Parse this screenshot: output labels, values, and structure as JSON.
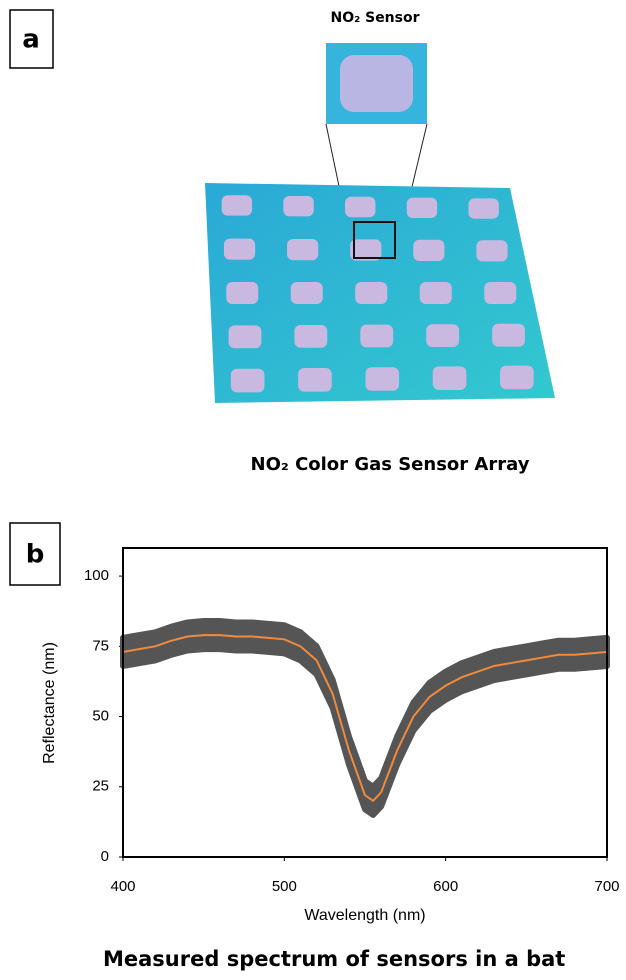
{
  "panel_a": {
    "label": "a",
    "inset_title": "NO₂ Sensor",
    "caption": "NO₂ Color Gas Sensor Array"
  },
  "panel_b": {
    "label": "b",
    "caption": "Measured spectrum of sensors in a bat"
  },
  "chart_data": {
    "type": "line",
    "x_label": "Wavelength (nm)",
    "y_label": "Reflectance (nm)",
    "x": [
      400,
      410,
      420,
      430,
      440,
      450,
      460,
      470,
      480,
      490,
      500,
      510,
      520,
      530,
      540,
      550,
      555,
      560,
      570,
      580,
      590,
      600,
      610,
      620,
      630,
      640,
      650,
      660,
      670,
      680,
      690,
      700
    ],
    "series": [
      {
        "color": "#f08a3c",
        "band_color": "#555555",
        "values": [
          73,
          74,
          75,
          77,
          78.5,
          79,
          79,
          78.5,
          78.5,
          78,
          77.5,
          75,
          70,
          58,
          38,
          22,
          20,
          23,
          38,
          50,
          57,
          61,
          64,
          66,
          68,
          69,
          70,
          71,
          72,
          72,
          72.5,
          73
        ],
        "error": [
          5,
          5,
          5,
          5,
          5,
          5,
          5,
          5,
          5,
          5,
          5,
          5,
          5,
          5,
          5,
          5,
          5,
          5,
          5,
          5,
          5,
          5,
          5,
          5,
          5,
          5,
          5,
          5,
          5,
          5,
          5,
          5
        ]
      }
    ],
    "xlim": [
      400,
      700
    ],
    "xticks": [
      400,
      500,
      600,
      700
    ],
    "ylim": [
      0,
      110
    ],
    "yticks": [
      0,
      25,
      50,
      75,
      100
    ],
    "grid": false
  }
}
